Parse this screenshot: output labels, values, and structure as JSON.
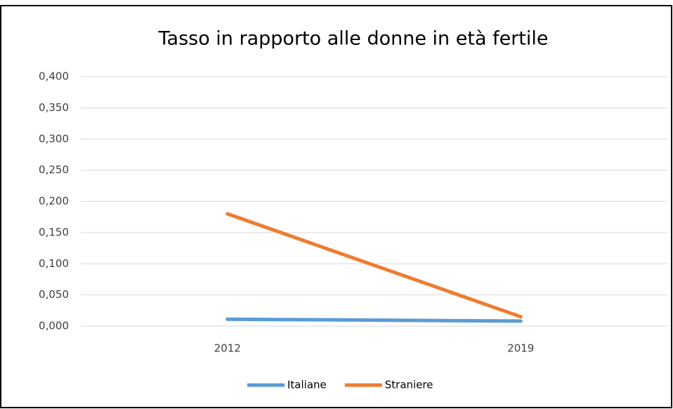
{
  "chart_data": {
    "type": "line",
    "title": "Tasso in rapporto alle donne in età fertile",
    "categories": [
      "2012",
      "2019"
    ],
    "series": [
      {
        "name": "Italiane",
        "color": "#5b9bd5",
        "values": [
          0.011,
          0.008
        ]
      },
      {
        "name": "Straniere",
        "color": "#ed7d31",
        "values": [
          0.18,
          0.015
        ]
      }
    ],
    "ylim": [
      0,
      0.4
    ],
    "yticks": [
      {
        "value": 0,
        "label": "0,000"
      },
      {
        "value": 0.05,
        "label": "0,050"
      },
      {
        "value": 0.1,
        "label": "0,100"
      },
      {
        "value": 0.15,
        "label": "0,150"
      },
      {
        "value": 0.2,
        "label": "0,200"
      },
      {
        "value": 0.25,
        "label": "0,250"
      },
      {
        "value": 0.3,
        "label": "0,300"
      },
      {
        "value": 0.35,
        "label": "0,350"
      },
      {
        "value": 0.4,
        "label": "0,400"
      }
    ],
    "grid": true,
    "legend": "bottom"
  }
}
